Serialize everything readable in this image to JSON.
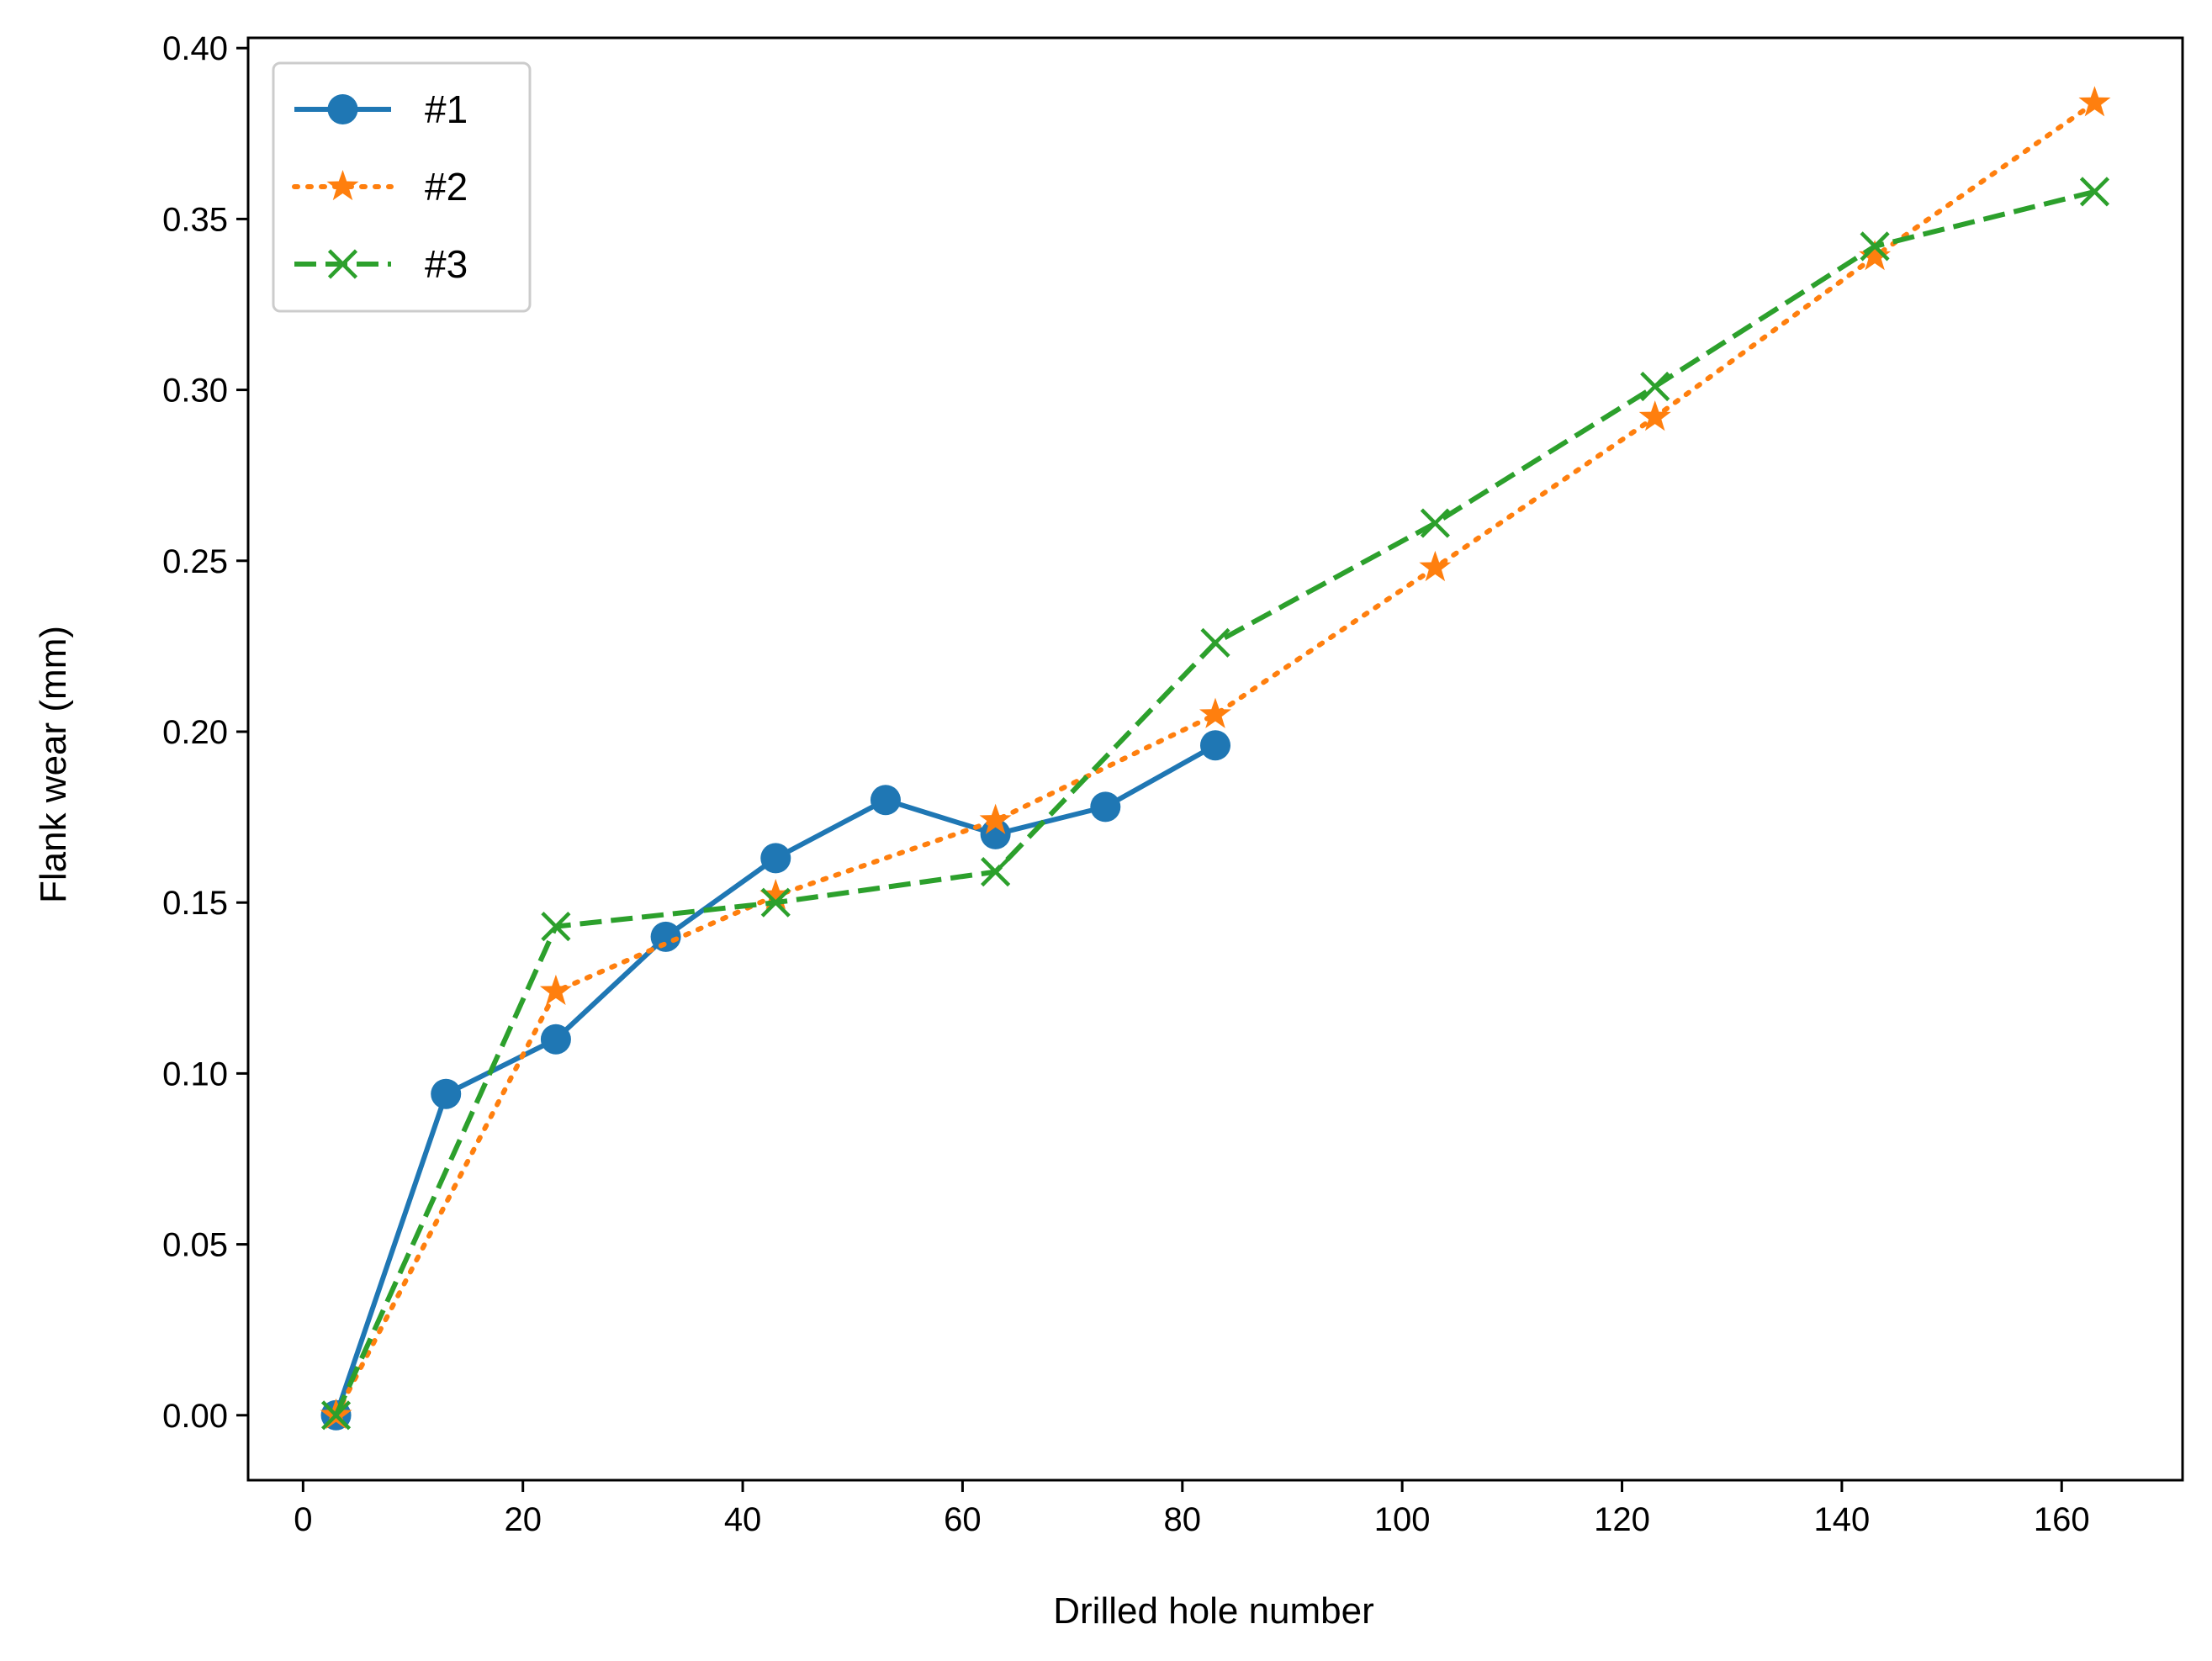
{
  "chart_data": {
    "type": "line",
    "title": "",
    "xlabel": "Drilled hole number",
    "ylabel": "Flank wear (mm)",
    "xlim": [
      -5,
      171
    ],
    "ylim": [
      -0.019,
      0.403
    ],
    "xticks": [
      0,
      20,
      40,
      60,
      80,
      100,
      120,
      140,
      160
    ],
    "xtick_labels": [
      "0",
      "20",
      "40",
      "60",
      "80",
      "100",
      "120",
      "140",
      "160"
    ],
    "yticks": [
      0.0,
      0.05,
      0.1,
      0.15,
      0.2,
      0.25,
      0.3,
      0.35,
      0.4
    ],
    "ytick_labels": [
      "0.00",
      "0.05",
      "0.10",
      "0.15",
      "0.20",
      "0.25",
      "0.30",
      "0.35",
      "0.40"
    ],
    "grid": false,
    "legend_position": "top-left",
    "series": [
      {
        "name": "#1",
        "color": "#1f77b4",
        "line_style": "solid",
        "marker": "circle",
        "x": [
          3,
          13,
          23,
          33,
          43,
          53,
          63,
          73,
          83
        ],
        "y": [
          0.0,
          0.094,
          0.11,
          0.14,
          0.163,
          0.18,
          0.17,
          0.178,
          0.196
        ]
      },
      {
        "name": "#2",
        "color": "#ff7f0e",
        "line_style": "dotted",
        "marker": "star",
        "x": [
          3,
          23,
          43,
          63,
          83,
          103,
          123,
          143,
          163
        ],
        "y": [
          0.0,
          0.124,
          0.152,
          0.174,
          0.205,
          0.248,
          0.292,
          0.339,
          0.384
        ]
      },
      {
        "name": "#3",
        "color": "#2ca02c",
        "line_style": "dashed",
        "marker": "x",
        "x": [
          3,
          23,
          43,
          63,
          83,
          103,
          123,
          143,
          163
        ],
        "y": [
          0.0,
          0.143,
          0.15,
          0.159,
          0.226,
          0.261,
          0.301,
          0.342,
          0.358
        ]
      }
    ]
  }
}
